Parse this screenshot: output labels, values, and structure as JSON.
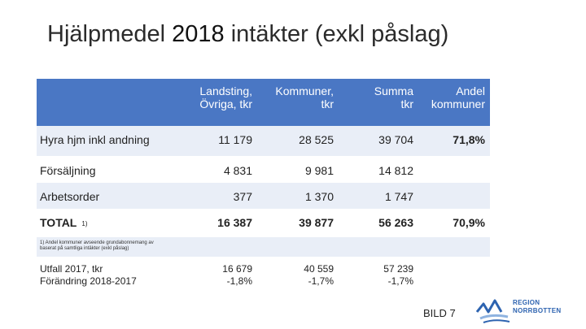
{
  "slide": {
    "title_prefix": "Hjälpmedel ",
    "title_year": "2018",
    "title_suffix": " intäkter (exkl påslag)",
    "page_label": "BILD 7"
  },
  "table": {
    "headers": [
      {
        "line1": "Landsting,",
        "line2": "Övriga, tkr"
      },
      {
        "line1": "Kommuner,",
        "line2": "tkr"
      },
      {
        "line1": "Summa",
        "line2": "tkr"
      },
      {
        "line1": "Andel",
        "line2": "kommuner"
      }
    ],
    "rows": [
      {
        "label": "Hyra hjm inkl andning",
        "landsting": "11 179",
        "kommuner": "28 525",
        "summa": "39 704",
        "andel": "71,8%"
      },
      {
        "label": "Försäljning",
        "landsting": "4 831",
        "kommuner": "9 981",
        "summa": "14 812",
        "andel": ""
      },
      {
        "label": "Arbetsorder",
        "landsting": "377",
        "kommuner": "1 370",
        "summa": "1 747",
        "andel": ""
      }
    ],
    "total": {
      "label": "TOTAL",
      "footnote_marker": "1)",
      "landsting": "16 387",
      "kommuner": "39 877",
      "summa": "56 263",
      "andel": "70,9%"
    },
    "footnote_line1": "1) Andel kommuner avseende grundabonnemang av",
    "footnote_line2": "baserat på samtliga intäkter (exkl påslag)",
    "comparison": {
      "label_line1": "Utfall 2017, tkr",
      "label_line2": "Förändring 2018-2017",
      "landsting_line1": "16 679",
      "landsting_line2": "-1,8%",
      "kommuner_line1": "40 559",
      "kommuner_line2": "-1,7%",
      "summa_line1": "57 239",
      "summa_line2": "-1,7%"
    }
  },
  "logo": {
    "line1": "REGION",
    "line2": "NORRBOTTEN"
  },
  "colors": {
    "header_bg": "#4a77c4",
    "band_bg": "#e9eef7",
    "logo_blue": "#2d63b0",
    "logo_light": "#8fb3e0"
  }
}
